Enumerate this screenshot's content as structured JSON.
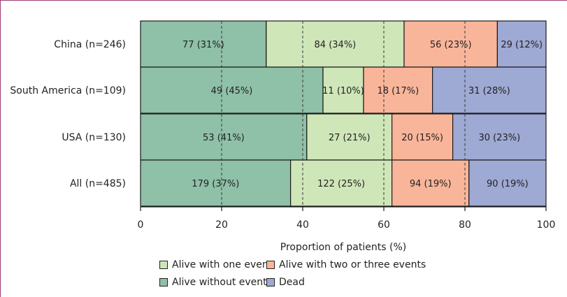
{
  "chart_data": {
    "type": "bar",
    "orientation": "horizontal",
    "stacked": true,
    "categories": [
      "China (n=246)",
      "South America (n=109)",
      "USA (n=130)",
      "All (n=485)"
    ],
    "series": [
      {
        "name": "Alive without events",
        "color": "#8fc0a8",
        "values": [
          31,
          45,
          41,
          37
        ],
        "labels": [
          "77 (31%)",
          "49 (45%)",
          "53 (41%)",
          "179 (37%)"
        ]
      },
      {
        "name": "Alive with one event",
        "color": "#cfe6b8",
        "values": [
          34,
          10,
          21,
          25
        ],
        "labels": [
          "84 (34%)",
          "11 (10%)",
          "27 (21%)",
          "122 (25%)"
        ]
      },
      {
        "name": "Alive with two or three events",
        "color": "#f9b59a",
        "values": [
          23,
          17,
          15,
          19
        ],
        "labels": [
          "56 (23%)",
          "18 (17%)",
          "20 (15%)",
          "94 (19%)"
        ]
      },
      {
        "name": "Dead",
        "color": "#9ea9d4",
        "values": [
          12,
          28,
          23,
          19
        ],
        "labels": [
          "29 (12%)",
          "31 (28%)",
          "30 (23%)",
          "90 (19%)"
        ]
      }
    ],
    "xlabel": "Proportion of patients (%)",
    "xlim": [
      0,
      100
    ],
    "xticks": [
      0,
      20,
      40,
      60,
      80,
      100
    ],
    "gridlines": "dashed vertical at 20, 40, 60, 80",
    "legend_position": "bottom"
  },
  "legend_order": [
    1,
    2,
    0,
    3
  ]
}
